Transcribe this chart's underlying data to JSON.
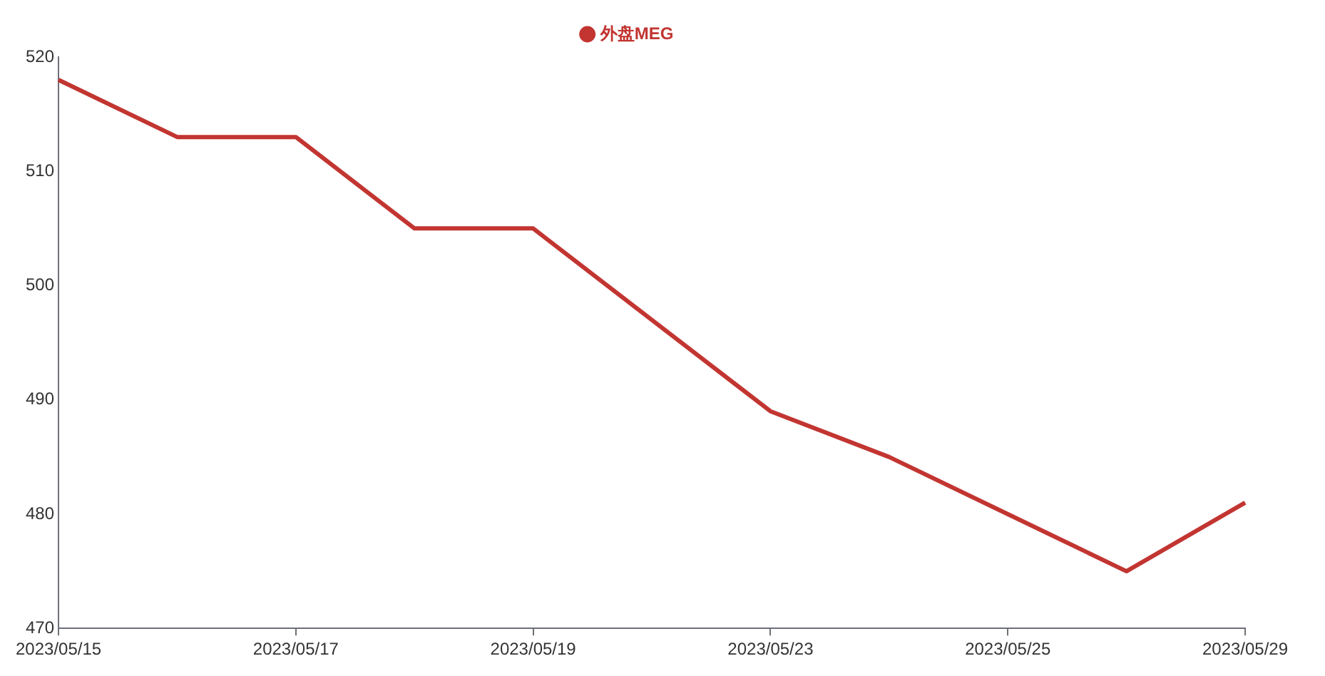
{
  "chart_data": {
    "type": "line",
    "categories": [
      "2023/05/15",
      null,
      "2023/05/17",
      null,
      "2023/05/19",
      null,
      "2023/05/23",
      null,
      "2023/05/25",
      null,
      "2023/05/29"
    ],
    "series": [
      {
        "name": "外盘MEG",
        "color": "#c23531",
        "values": [
          518,
          513,
          513,
          505,
          505,
          497,
          489,
          485,
          480,
          475,
          481
        ]
      }
    ],
    "ylim": [
      470,
      520
    ],
    "yticks": [
      470,
      480,
      490,
      500,
      510,
      520
    ],
    "grid": false,
    "legend": "top",
    "marker": "none",
    "line_style": "solid"
  }
}
